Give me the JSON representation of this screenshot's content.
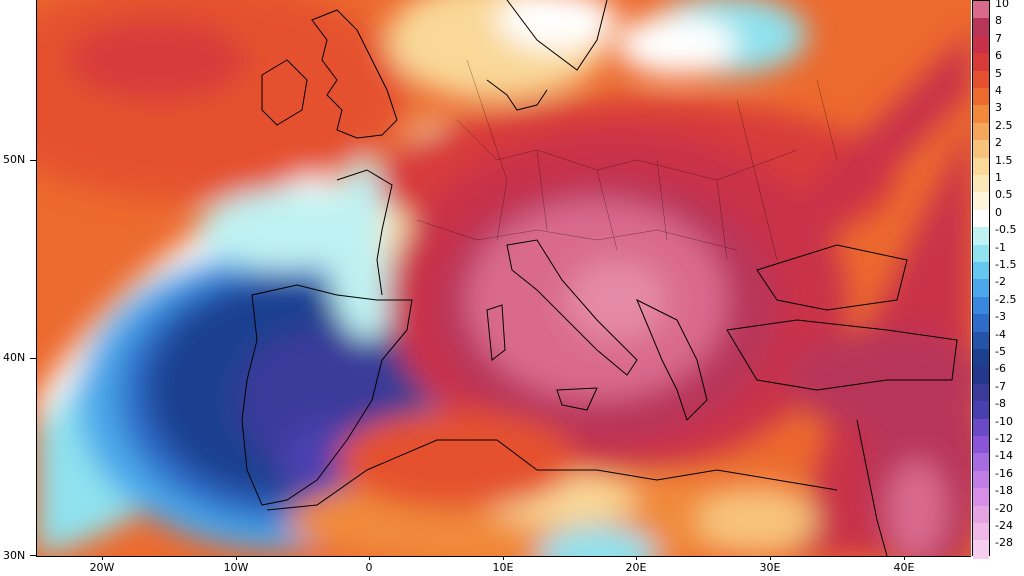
{
  "map": {
    "lat_labels": [
      "50N",
      "40N",
      "30N"
    ],
    "lon_labels": [
      "20W",
      "10W",
      "0",
      "10E",
      "20E",
      "30E",
      "40E"
    ]
  },
  "colorbar": {
    "labels": [
      "10",
      "8",
      "7",
      "6",
      "5",
      "4",
      "3",
      "2.5",
      "2",
      "1.5",
      "1",
      "0.5",
      "0",
      "-0.5",
      "-1",
      "-1.5",
      "-2",
      "-2.5",
      "-3",
      "-4",
      "-5",
      "-6",
      "-7",
      "-8",
      "-10",
      "-12",
      "-14",
      "-16",
      "-18",
      "-20",
      "-24",
      "-28"
    ],
    "colors": [
      "#d96a8e",
      "#b8355a",
      "#c9304a",
      "#d83a3a",
      "#e5512e",
      "#ec6a2e",
      "#f08a3a",
      "#f4a75a",
      "#f7c27a",
      "#f9d898",
      "#fbe8b8",
      "#fdf4dc",
      "#ffffff",
      "#bff2f2",
      "#8fe2ee",
      "#66c8ee",
      "#4ca8ea",
      "#3a88de",
      "#2f6cc8",
      "#2553a8",
      "#1d3f90",
      "#25378a",
      "#3a3a9a",
      "#4a3fae",
      "#6a4ac6",
      "#8a55d6",
      "#a66ce0",
      "#c07ee6",
      "#d68ee6",
      "#e5a3e2",
      "#efb8e6",
      "#f5cdee"
    ]
  }
}
